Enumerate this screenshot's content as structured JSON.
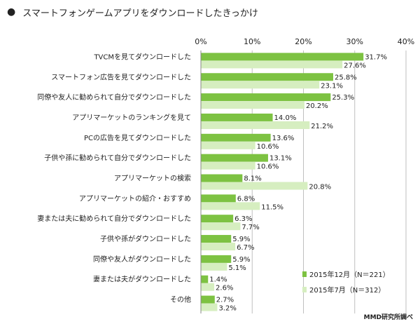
{
  "title": "スマートフォンゲームアプリをダウンロードしたきっかけ",
  "title_bullet": "●",
  "source": "MMD研究所調べ",
  "colors": {
    "dec": "#7dc242",
    "jul": "#d6eec0",
    "grid": "#bfbfbf"
  },
  "chart_data": {
    "type": "bar",
    "orientation": "horizontal",
    "title": "スマートフォンゲームアプリをダウンロードしたきっかけ",
    "xlim": [
      0,
      40
    ],
    "x_ticks": [
      "0%",
      "10%",
      "20%",
      "30%",
      "40%"
    ],
    "x_tick_values": [
      0,
      10,
      20,
      30,
      40
    ],
    "grid": true,
    "legend_position": "bottom-right",
    "categories": [
      "TVCMを見てダウンロードした",
      "スマートフォン広告を見てダウンロードした",
      "同僚や友人に勧められて自分でダウンロードした",
      "アプリマーケットのランキングを見て",
      "PCの広告を見てダウンロードした",
      "子供や孫に勧められて自分でダウンロードした",
      "アプリマーケットの検索",
      "アプリマーケットの紹介・おすすめ",
      "妻または夫に勧められて自分でダウンロードした",
      "子供や孫がダウンロードした",
      "同僚や友人がダウンロードした",
      "妻または夫がダウンロードした",
      "その他"
    ],
    "series": [
      {
        "name": "2015年12月（N＝221）",
        "values": [
          31.7,
          25.8,
          25.3,
          14.0,
          13.6,
          13.1,
          8.1,
          6.8,
          6.3,
          5.9,
          5.9,
          1.4,
          2.7
        ],
        "labels": [
          "31.7%",
          "25.8%",
          "25.3%",
          "14.0%",
          "13.6%",
          "13.1%",
          "8.1%",
          "6.8%",
          "6.3%",
          "5.9%",
          "5.9%",
          "1.4%",
          "2.7%"
        ]
      },
      {
        "name": "2015年7月（N＝312）",
        "values": [
          27.6,
          23.1,
          20.2,
          21.2,
          10.6,
          10.6,
          20.8,
          11.5,
          7.7,
          6.7,
          5.1,
          2.6,
          3.2
        ],
        "labels": [
          "27.6%",
          "23.1%",
          "20.2%",
          "21.2%",
          "10.6%",
          "10.6%",
          "20.8%",
          "11.5%",
          "7.7%",
          "6.7%",
          "5.1%",
          "2.6%",
          "3.2%"
        ]
      }
    ]
  }
}
